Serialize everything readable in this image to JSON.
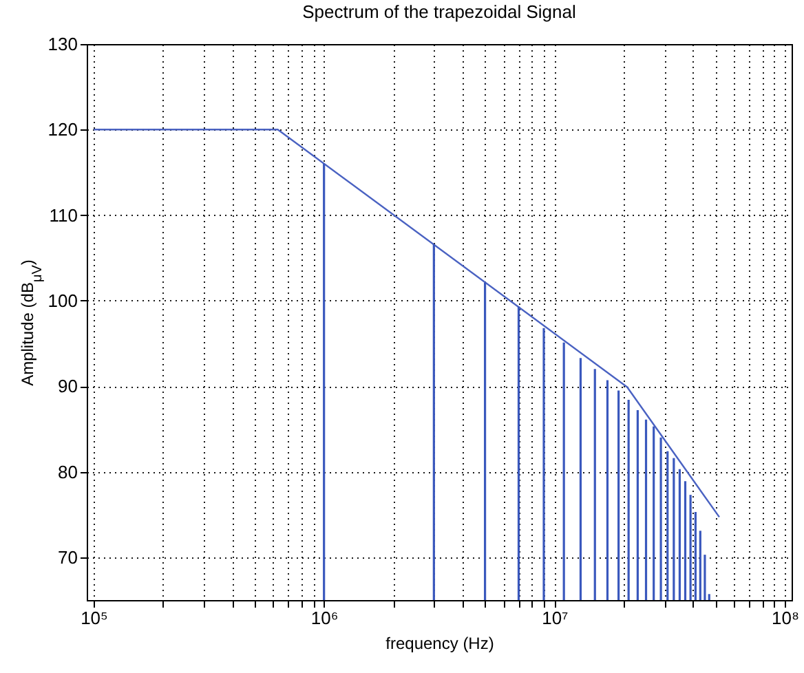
{
  "chart_data": {
    "type": "line",
    "title": "Spectrum of the trapezoidal Signal",
    "xlabel": "frequency (Hz)",
    "ylabel": "Amplitude (dB$_{μV}$)",
    "log": "x",
    "grid": true,
    "xlim": [
      100000,
      100000000
    ],
    "ylim": [
      65,
      130
    ],
    "xticks": [
      {
        "value": 100000,
        "label": "10⁵"
      },
      {
        "value": 200000,
        "label": null
      },
      {
        "value": 300000,
        "label": null
      },
      {
        "value": 400000,
        "label": null
      },
      {
        "value": 500000,
        "label": null
      },
      {
        "value": 600000,
        "label": null
      },
      {
        "value": 700000,
        "label": null
      },
      {
        "value": 800000,
        "label": null
      },
      {
        "value": 900000,
        "label": null
      },
      {
        "value": 1000000,
        "label": "10⁶"
      },
      {
        "value": 2000000,
        "label": null
      },
      {
        "value": 3000000,
        "label": null
      },
      {
        "value": 4000000,
        "label": null
      },
      {
        "value": 5000000,
        "label": null
      },
      {
        "value": 6000000,
        "label": null
      },
      {
        "value": 7000000,
        "label": null
      },
      {
        "value": 8000000,
        "label": null
      },
      {
        "value": 9000000,
        "label": null
      },
      {
        "value": 10000000,
        "label": "10⁷"
      },
      {
        "value": 20000000,
        "label": null
      },
      {
        "value": 30000000,
        "label": null
      },
      {
        "value": 40000000,
        "label": null
      },
      {
        "value": 50000000,
        "label": null
      },
      {
        "value": 60000000,
        "label": null
      },
      {
        "value": 70000000,
        "label": null
      },
      {
        "value": 80000000,
        "label": null
      },
      {
        "value": 90000000,
        "label": null
      },
      {
        "value": 100000000,
        "label": "10⁸"
      }
    ],
    "yticks": [
      70,
      80,
      90,
      100,
      110,
      120,
      130
    ],
    "series": [
      {
        "color": "#4a62c2",
        "x": [
          100000,
          630000,
          20700000,
          52000000
        ],
        "values": [
          120,
          120,
          89.9,
          74.7
        ]
      },
      {
        "type": "bar",
        "color": "#3a58bd",
        "x": [
          1000000,
          3000000,
          5000000,
          7000000,
          9000000,
          11000000,
          13000000,
          15000000,
          17000000,
          19000000,
          21000000,
          23000000,
          25000000,
          27000000,
          29000000,
          31000000,
          33000000,
          35000000,
          37000000,
          39000000,
          41000000,
          43000000,
          45000000,
          47000000
        ],
        "values": [
          116,
          106.6,
          102.1,
          99.3,
          96.8,
          95.1,
          93.3,
          92,
          90.7,
          89.5,
          88.4,
          87.2,
          86.1,
          85.3,
          84,
          82.4,
          81.6,
          80.3,
          78.9,
          77.3,
          75.3,
          73.1,
          70.3,
          65.7
        ]
      }
    ]
  }
}
